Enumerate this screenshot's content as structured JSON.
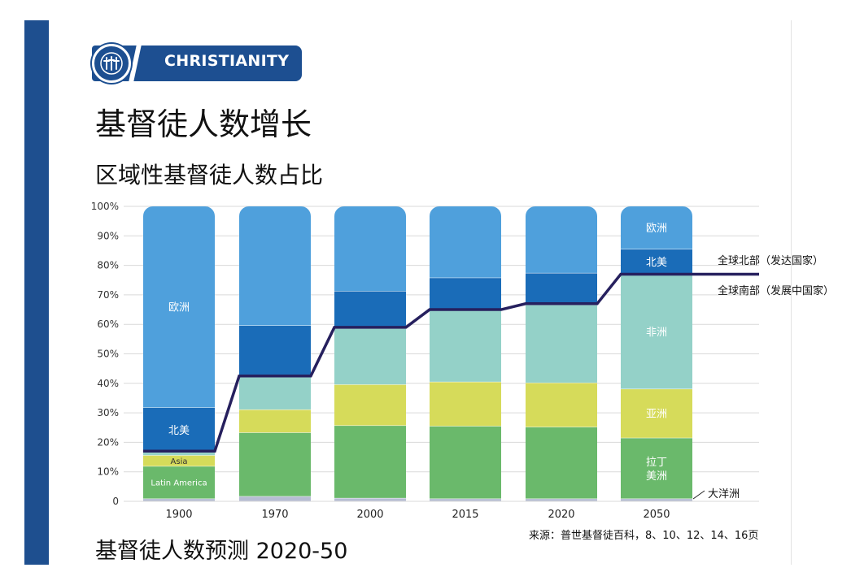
{
  "header": {
    "badge_label": "CHRISTIANITY",
    "badge_icon": "three-crosses-icon",
    "title": "基督徒人数增长",
    "subtitle": "区域性基督徒人数占比"
  },
  "footer": {
    "forecast": "基督徒人数预测 2020-50",
    "source": "来源：普世基督徒百科，8、10、12、14、16页"
  },
  "colors": {
    "accent": "#1e4f8f",
    "europe": "#4fa0dc",
    "north_america": "#1a6cb8",
    "africa": "#94d1c8",
    "asia": "#d6db5a",
    "latin_america": "#6ab96b",
    "oceania": "#b6bdd4",
    "divider_line": "#26205e"
  },
  "chart_data": {
    "type": "bar",
    "stacked": true,
    "categories": [
      "1900",
      "1970",
      "2000",
      "2015",
      "2020",
      "2050"
    ],
    "ylim": [
      0,
      100
    ],
    "ytick_labels": [
      "0",
      "10%",
      "20%",
      "30%",
      "40%",
      "50%",
      "60%",
      "70%",
      "80%",
      "90%",
      "100%"
    ],
    "series": [
      {
        "name": "大洋洲",
        "values": [
          0.8,
          1.6,
          1.0,
          0.8,
          0.8,
          0.8
        ]
      },
      {
        "name": "Latin America",
        "values": [
          11,
          21.6,
          24.6,
          24.6,
          24.3,
          20.6
        ]
      },
      {
        "name": "Asia",
        "values": [
          3.7,
          7.8,
          13.9,
          15,
          15,
          16.6
        ]
      },
      {
        "name": "Africa",
        "values": [
          1,
          11,
          19,
          24.3,
          26.4,
          38.8
        ]
      },
      {
        "name": "North America",
        "values": [
          15.2,
          17.5,
          12.7,
          11,
          10.8,
          8.6
        ]
      },
      {
        "name": "Europe",
        "values": [
          68.3,
          40.5,
          28.8,
          24.3,
          22.7,
          14.6
        ]
      }
    ],
    "north_south_divider": [
      17,
      42.5,
      59,
      65,
      67,
      77
    ],
    "segment_labels": [
      {
        "category": "1900",
        "series": "Europe",
        "text": "欧洲"
      },
      {
        "category": "1900",
        "series": "North America",
        "text": "北美"
      },
      {
        "category": "1900",
        "series": "Asia",
        "text": "Asia"
      },
      {
        "category": "1900",
        "series": "Latin America",
        "text": "Latin America"
      },
      {
        "category": "2050",
        "series": "Europe",
        "text": "欧洲"
      },
      {
        "category": "2050",
        "series": "North America",
        "text": "北美"
      },
      {
        "category": "2050",
        "series": "Africa",
        "text": "非洲"
      },
      {
        "category": "2050",
        "series": "Asia",
        "text": "亚洲"
      },
      {
        "category": "2050",
        "series": "Latin America",
        "text": "拉丁\n美洲"
      }
    ],
    "annotations": {
      "global_north": "全球北部（发达国家）",
      "global_south": "全球南部（发展中国家）",
      "oceania": "大洋洲"
    }
  }
}
